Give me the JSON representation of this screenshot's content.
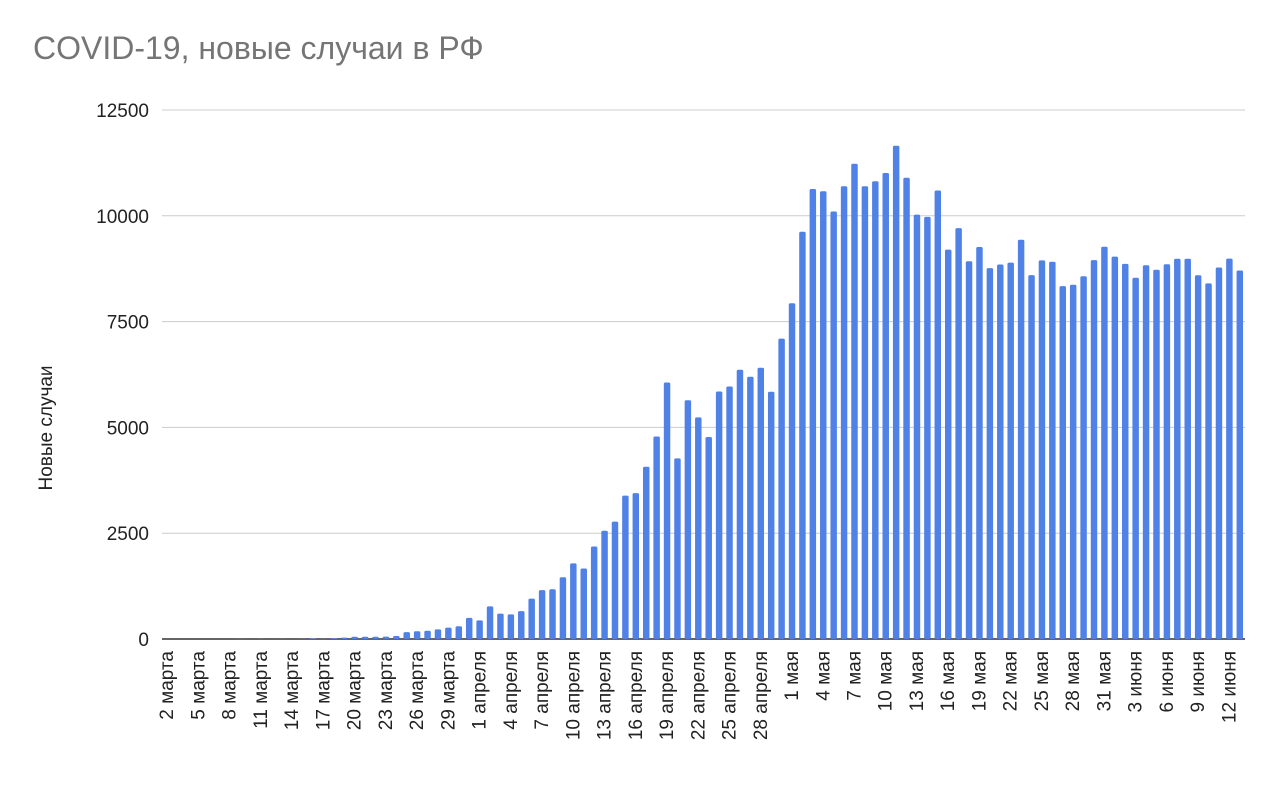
{
  "chart_data": {
    "type": "bar",
    "title": "COVID-19, новые случаи в РФ",
    "xlabel": "",
    "ylabel": "Новые случаи",
    "ylim": [
      0,
      12500
    ],
    "yticks": [
      0,
      2500,
      5000,
      7500,
      10000,
      12500
    ],
    "grid": true,
    "legend": "none",
    "bar_color": "#4f81e6",
    "x_tick_labels": [
      "2 марта",
      "5 марта",
      "8 марта",
      "11 марта",
      "14 марта",
      "17 марта",
      "20 марта",
      "23 марта",
      "26 марта",
      "29 марта",
      "1 апреля",
      "4 апреля",
      "7 апреля",
      "10 апреля",
      "13 апреля",
      "16 апреля",
      "19 апреля",
      "22 апреля",
      "25 апреля",
      "28 апреля",
      "1 мая",
      "4 мая",
      "7 мая",
      "10 мая",
      "13 мая",
      "16 мая",
      "19 мая",
      "22 мая",
      "25 мая",
      "28 мая",
      "31 мая",
      "3 июня",
      "6 июня",
      "9 июня",
      "12 июня"
    ],
    "series": [
      {
        "values": [
          1,
          0,
          0,
          1,
          0,
          0,
          1,
          3,
          0,
          3,
          0,
          3,
          0,
          4,
          14,
          4,
          20,
          33,
          52,
          54,
          53,
          57,
          71,
          163,
          182,
          196,
          228,
          270,
          302,
          500,
          440,
          771,
          601,
          582,
          658,
          954,
          1154,
          1175,
          1459,
          1786,
          1667,
          2186,
          2558,
          2774,
          3388,
          3448,
          4070,
          4785,
          6060,
          4268,
          5642,
          5236,
          4774,
          5849,
          5966,
          6361,
          6198,
          6411,
          5841,
          7099,
          7933,
          9623,
          10633,
          10581,
          10102,
          10699,
          11231,
          10699,
          10817,
          11012,
          11656,
          10899,
          10028,
          9974,
          10598,
          9200,
          9709,
          8926,
          9263,
          8764,
          8849,
          8894,
          9434,
          8599,
          8946,
          8915,
          8338,
          8371,
          8572,
          8952,
          9268,
          9035,
          8863,
          8536,
          8831,
          8726,
          8855,
          8985,
          8984,
          8595,
          8404,
          8779,
          8987,
          8706
        ]
      }
    ]
  }
}
